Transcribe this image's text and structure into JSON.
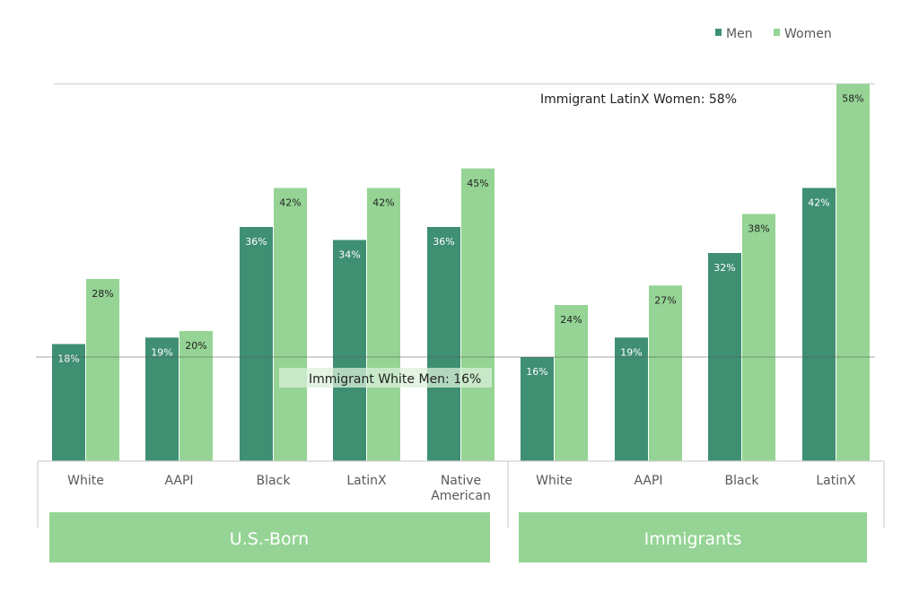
{
  "chart_data": {
    "type": "bar",
    "legend": {
      "position": "top-right"
    },
    "groups": [
      {
        "label": "U.S.-Born",
        "categories": [
          "White",
          "AAPI",
          "Black",
          "LatinX",
          "Native American"
        ]
      },
      {
        "label": "Immigrants",
        "categories": [
          "White",
          "AAPI",
          "Black",
          "LatinX"
        ]
      }
    ],
    "series": [
      {
        "name": "Men",
        "color": "#3f8f73",
        "values": [
          18,
          19,
          36,
          34,
          36,
          16,
          19,
          32,
          42
        ]
      },
      {
        "name": "Women",
        "color": "#95d494",
        "values": [
          28,
          20,
          42,
          42,
          45,
          24,
          27,
          38,
          58
        ]
      }
    ],
    "data_labels": {
      "Men": [
        "18%",
        "19%",
        "36%",
        "34%",
        "36%",
        "16%",
        "19%",
        "32%",
        "42%"
      ],
      "Women": [
        "28%",
        "20%",
        "42%",
        "42%",
        "45%",
        "24%",
        "27%",
        "38%",
        "58%"
      ]
    },
    "reference_lines": [
      {
        "value": 58,
        "label": "Immigrant LatinX Women: 58%"
      },
      {
        "value": 16,
        "label": "Immigrant White Men: 16%"
      }
    ],
    "ylim": [
      0,
      58
    ],
    "grid": false
  }
}
